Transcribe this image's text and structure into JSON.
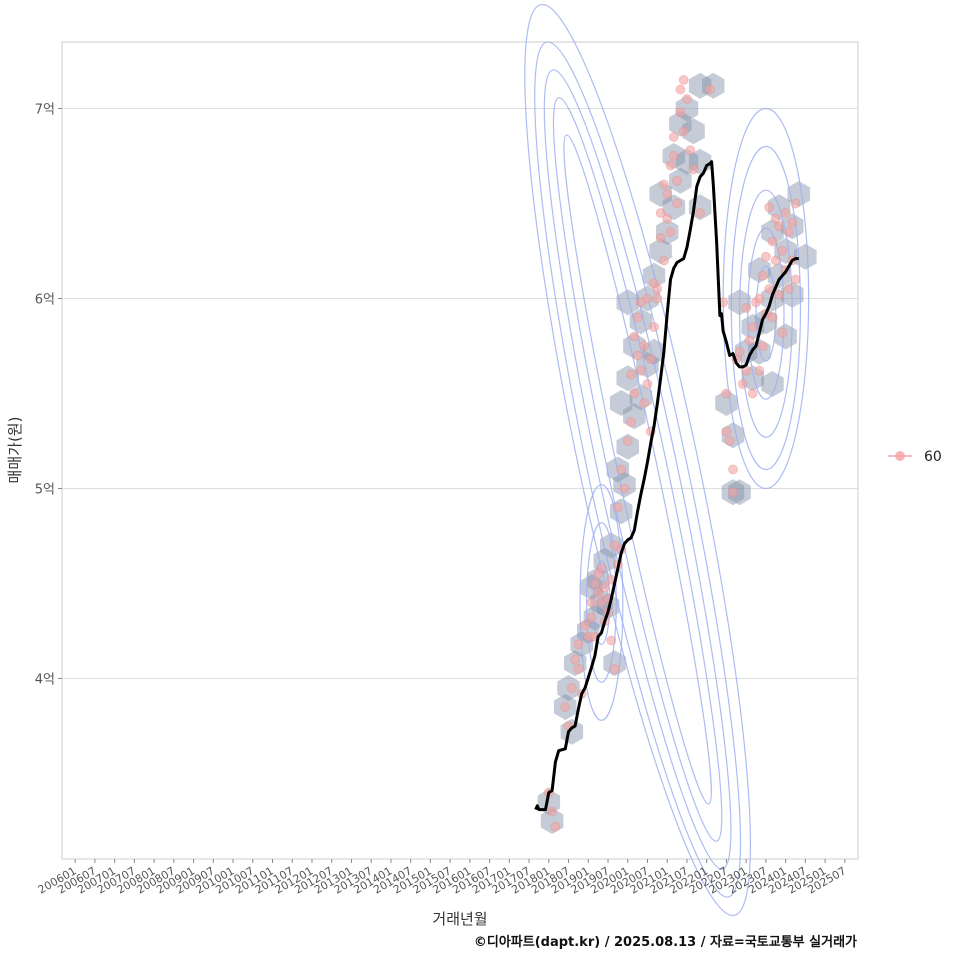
{
  "chart_data": {
    "type": "scatter",
    "title": "",
    "xlabel": "거래년월",
    "ylabel": "매매가(원)",
    "y_unit": "억",
    "ylim": [
      3.05,
      7.35
    ],
    "y_ticks": [
      4,
      5,
      6,
      7
    ],
    "y_tick_labels": [
      "4억",
      "5억",
      "6억",
      "7억"
    ],
    "x_ticks": [
      "200601",
      "200607",
      "200701",
      "200707",
      "200801",
      "200807",
      "200901",
      "200907",
      "201001",
      "201007",
      "201101",
      "201107",
      "201201",
      "201207",
      "201301",
      "201307",
      "201401",
      "201407",
      "201501",
      "201507",
      "201601",
      "201607",
      "201701",
      "201707",
      "201801",
      "201807",
      "201901",
      "201907",
      "202001",
      "202007",
      "202101",
      "202107",
      "202201",
      "202207",
      "202301",
      "202307",
      "202401",
      "202407",
      "202501",
      "202507"
    ],
    "xlim_months": [
      -4,
      238
    ],
    "grid": true,
    "legend": {
      "position": "right",
      "entries": [
        {
          "label": "60",
          "color": "#f4a3a3"
        }
      ]
    },
    "series": [
      {
        "name": "moving-average",
        "kind": "line",
        "color": "#000000",
        "points": [
          [
            140,
            3.31
          ],
          [
            140.5,
            3.33
          ],
          [
            141,
            3.31
          ],
          [
            143,
            3.31
          ],
          [
            144,
            3.4
          ],
          [
            145,
            3.41
          ],
          [
            146,
            3.56
          ],
          [
            147,
            3.62
          ],
          [
            149,
            3.63
          ],
          [
            150,
            3.72
          ],
          [
            151,
            3.74
          ],
          [
            152,
            3.75
          ],
          [
            153,
            3.84
          ],
          [
            154,
            3.92
          ],
          [
            155,
            3.95
          ],
          [
            157,
            4.06
          ],
          [
            158,
            4.12
          ],
          [
            159,
            4.22
          ],
          [
            160,
            4.24
          ],
          [
            161,
            4.3
          ],
          [
            162,
            4.35
          ],
          [
            163,
            4.42
          ],
          [
            164,
            4.5
          ],
          [
            165,
            4.58
          ],
          [
            166,
            4.66
          ],
          [
            167,
            4.71
          ],
          [
            168,
            4.73
          ],
          [
            169,
            4.74
          ],
          [
            170,
            4.78
          ],
          [
            171,
            4.88
          ],
          [
            172,
            4.97
          ],
          [
            173,
            5.05
          ],
          [
            174,
            5.14
          ],
          [
            175,
            5.24
          ],
          [
            176,
            5.33
          ],
          [
            177,
            5.45
          ],
          [
            178,
            5.58
          ],
          [
            179,
            5.72
          ],
          [
            180,
            5.92
          ],
          [
            181,
            6.1
          ],
          [
            182,
            6.16
          ],
          [
            183,
            6.19
          ],
          [
            184,
            6.2
          ],
          [
            185,
            6.21
          ],
          [
            186,
            6.27
          ],
          [
            187,
            6.36
          ],
          [
            188,
            6.46
          ],
          [
            189,
            6.59
          ],
          [
            190,
            6.64
          ],
          [
            191,
            6.66
          ],
          [
            192,
            6.7
          ],
          [
            193,
            6.71
          ],
          [
            193.5,
            6.72
          ],
          [
            194,
            6.6
          ],
          [
            195,
            6.3
          ],
          [
            196,
            5.91
          ],
          [
            196.5,
            5.92
          ],
          [
            197,
            5.83
          ],
          [
            198,
            5.77
          ],
          [
            199,
            5.7
          ],
          [
            200,
            5.71
          ],
          [
            201,
            5.66
          ],
          [
            202,
            5.64
          ],
          [
            203,
            5.64
          ],
          [
            204,
            5.65
          ],
          [
            205,
            5.7
          ],
          [
            206,
            5.73
          ],
          [
            207,
            5.75
          ],
          [
            208,
            5.82
          ],
          [
            209,
            5.89
          ],
          [
            210,
            5.92
          ],
          [
            211,
            5.96
          ],
          [
            212,
            6.02
          ],
          [
            213,
            6.06
          ],
          [
            214,
            6.1
          ],
          [
            215,
            6.12
          ],
          [
            216,
            6.14
          ],
          [
            217,
            6.17
          ],
          [
            218,
            6.2
          ],
          [
            219,
            6.21
          ],
          [
            220,
            6.21
          ]
        ]
      },
      {
        "name": "60",
        "kind": "points",
        "color": "#f4a3a3",
        "note": "reproduced transactions (approximate)",
        "points": [
          [
            144,
            3.4
          ],
          [
            145,
            3.3
          ],
          [
            146,
            3.22
          ],
          [
            149,
            3.85
          ],
          [
            150,
            3.75
          ],
          [
            151,
            3.95
          ],
          [
            152,
            4.1
          ],
          [
            153,
            4.05
          ],
          [
            153,
            4.18
          ],
          [
            154,
            3.92
          ],
          [
            155,
            4.28
          ],
          [
            156,
            4.22
          ],
          [
            157,
            4.4
          ],
          [
            157,
            4.32
          ],
          [
            158,
            4.5
          ],
          [
            158,
            4.22
          ],
          [
            159,
            4.45
          ],
          [
            159,
            4.55
          ],
          [
            160,
            4.4
          ],
          [
            160,
            4.58
          ],
          [
            161,
            4.3
          ],
          [
            161,
            4.48
          ],
          [
            162,
            4.42
          ],
          [
            162,
            4.35
          ],
          [
            163,
            4.2
          ],
          [
            163,
            4.52
          ],
          [
            164,
            4.7
          ],
          [
            164,
            4.05
          ],
          [
            165,
            4.6
          ],
          [
            165,
            4.9
          ],
          [
            166,
            4.68
          ],
          [
            166,
            5.1
          ],
          [
            167,
            5.0
          ],
          [
            168,
            5.25
          ],
          [
            169,
            5.35
          ],
          [
            169,
            5.6
          ],
          [
            170,
            5.5
          ],
          [
            170,
            5.8
          ],
          [
            171,
            5.9
          ],
          [
            171,
            5.7
          ],
          [
            172,
            5.98
          ],
          [
            172,
            5.62
          ],
          [
            173,
            5.75
          ],
          [
            173,
            5.45
          ],
          [
            174,
            5.55
          ],
          [
            174,
            6.0
          ],
          [
            175,
            5.3
          ],
          [
            175,
            5.68
          ],
          [
            176,
            5.85
          ],
          [
            176,
            6.08
          ],
          [
            177,
            6.05
          ],
          [
            177,
            6.0
          ],
          [
            178,
            6.32
          ],
          [
            178,
            6.45
          ],
          [
            179,
            6.2
          ],
          [
            179,
            6.6
          ],
          [
            180,
            6.42
          ],
          [
            180,
            6.55
          ],
          [
            181,
            6.7
          ],
          [
            181,
            6.35
          ],
          [
            182,
            6.75
          ],
          [
            182,
            6.85
          ],
          [
            183,
            6.62
          ],
          [
            183,
            6.5
          ],
          [
            184,
            6.98
          ],
          [
            184,
            7.1
          ],
          [
            185,
            7.15
          ],
          [
            185,
            6.88
          ],
          [
            186,
            7.05
          ],
          [
            187,
            6.78
          ],
          [
            188,
            6.68
          ],
          [
            190,
            6.45
          ],
          [
            193,
            7.1
          ],
          [
            197,
            5.98
          ],
          [
            198,
            5.5
          ],
          [
            198,
            5.3
          ],
          [
            199,
            5.25
          ],
          [
            200,
            5.1
          ],
          [
            200,
            4.98
          ],
          [
            201,
            5.68
          ],
          [
            202,
            5.72
          ],
          [
            203,
            5.55
          ],
          [
            204,
            5.95
          ],
          [
            204,
            5.62
          ],
          [
            205,
            5.78
          ],
          [
            206,
            5.85
          ],
          [
            206,
            5.5
          ],
          [
            207,
            5.98
          ],
          [
            208,
            5.62
          ],
          [
            208,
            6.0
          ],
          [
            209,
            5.75
          ],
          [
            209,
            6.12
          ],
          [
            210,
            5.92
          ],
          [
            210,
            6.22
          ],
          [
            211,
            6.05
          ],
          [
            211,
            6.48
          ],
          [
            212,
            6.3
          ],
          [
            212,
            5.9
          ],
          [
            213,
            6.2
          ],
          [
            213,
            6.42
          ],
          [
            214,
            6.38
          ],
          [
            214,
            6.02
          ],
          [
            215,
            6.25
          ],
          [
            215,
            5.82
          ],
          [
            216,
            6.45
          ],
          [
            216,
            6.15
          ],
          [
            217,
            6.35
          ],
          [
            217,
            6.05
          ],
          [
            218,
            6.4
          ],
          [
            218,
            6.2
          ],
          [
            219,
            6.5
          ],
          [
            219,
            6.1
          ]
        ]
      }
    ],
    "density_hexbins": [
      {
        "x": 145,
        "y": 3.25
      },
      {
        "x": 144,
        "y": 3.35
      },
      {
        "x": 149,
        "y": 3.85
      },
      {
        "x": 151,
        "y": 3.72
      },
      {
        "x": 150,
        "y": 3.95
      },
      {
        "x": 152,
        "y": 4.08
      },
      {
        "x": 154,
        "y": 4.18
      },
      {
        "x": 156,
        "y": 4.25
      },
      {
        "x": 158,
        "y": 4.32
      },
      {
        "x": 160,
        "y": 4.4
      },
      {
        "x": 162,
        "y": 4.38
      },
      {
        "x": 159,
        "y": 4.52
      },
      {
        "x": 157,
        "y": 4.48
      },
      {
        "x": 161,
        "y": 4.62
      },
      {
        "x": 163,
        "y": 4.7
      },
      {
        "x": 164,
        "y": 4.08
      },
      {
        "x": 166,
        "y": 4.88
      },
      {
        "x": 165,
        "y": 5.1
      },
      {
        "x": 167,
        "y": 5.02
      },
      {
        "x": 168,
        "y": 5.22
      },
      {
        "x": 170,
        "y": 5.38
      },
      {
        "x": 166,
        "y": 5.45
      },
      {
        "x": 172,
        "y": 5.48
      },
      {
        "x": 168,
        "y": 5.58
      },
      {
        "x": 174,
        "y": 5.65
      },
      {
        "x": 170,
        "y": 5.75
      },
      {
        "x": 176,
        "y": 5.72
      },
      {
        "x": 172,
        "y": 5.88
      },
      {
        "x": 168,
        "y": 5.98
      },
      {
        "x": 174,
        "y": 6.0
      },
      {
        "x": 176,
        "y": 6.12
      },
      {
        "x": 178,
        "y": 6.25
      },
      {
        "x": 180,
        "y": 6.35
      },
      {
        "x": 182,
        "y": 6.48
      },
      {
        "x": 178,
        "y": 6.55
      },
      {
        "x": 184,
        "y": 6.62
      },
      {
        "x": 186,
        "y": 6.72
      },
      {
        "x": 182,
        "y": 6.75
      },
      {
        "x": 188,
        "y": 6.88
      },
      {
        "x": 184,
        "y": 6.92
      },
      {
        "x": 186,
        "y": 7.0
      },
      {
        "x": 190,
        "y": 7.12
      },
      {
        "x": 194,
        "y": 7.12
      },
      {
        "x": 190,
        "y": 6.48
      },
      {
        "x": 190,
        "y": 6.72
      },
      {
        "x": 198,
        "y": 5.45
      },
      {
        "x": 200,
        "y": 5.28
      },
      {
        "x": 200,
        "y": 4.98
      },
      {
        "x": 202,
        "y": 4.98
      },
      {
        "x": 204,
        "y": 5.72
      },
      {
        "x": 206,
        "y": 5.58
      },
      {
        "x": 202,
        "y": 5.98
      },
      {
        "x": 206,
        "y": 5.85
      },
      {
        "x": 208,
        "y": 5.72
      },
      {
        "x": 210,
        "y": 5.88
      },
      {
        "x": 212,
        "y": 6.0
      },
      {
        "x": 208,
        "y": 6.15
      },
      {
        "x": 214,
        "y": 6.12
      },
      {
        "x": 216,
        "y": 6.25
      },
      {
        "x": 212,
        "y": 6.35
      },
      {
        "x": 218,
        "y": 6.38
      },
      {
        "x": 214,
        "y": 6.48
      },
      {
        "x": 220,
        "y": 6.55
      },
      {
        "x": 222,
        "y": 6.22
      },
      {
        "x": 216,
        "y": 5.8
      },
      {
        "x": 212,
        "y": 5.55
      },
      {
        "x": 218,
        "y": 6.02
      }
    ],
    "density_contours": [
      {
        "cx": 171,
        "cy": 5.1,
        "rx": 6,
        "ry": 1.8,
        "rot": -12
      },
      {
        "cx": 171,
        "cy": 5.1,
        "rx": 9,
        "ry": 2.0,
        "rot": -12
      },
      {
        "cx": 171,
        "cy": 5.1,
        "rx": 12,
        "ry": 2.15,
        "rot": -12
      },
      {
        "cx": 171,
        "cy": 5.1,
        "rx": 15,
        "ry": 2.3,
        "rot": -12
      },
      {
        "cx": 171,
        "cy": 5.15,
        "rx": 18,
        "ry": 2.45,
        "rot": -12
      },
      {
        "cx": 160,
        "cy": 4.4,
        "rx": 2.5,
        "ry": 0.22,
        "rot": 0
      },
      {
        "cx": 160,
        "cy": 4.4,
        "rx": 4.5,
        "ry": 0.42,
        "rot": 0
      },
      {
        "cx": 160,
        "cy": 4.4,
        "rx": 6.5,
        "ry": 0.62,
        "rot": 0
      },
      {
        "cx": 210,
        "cy": 5.92,
        "rx": 3,
        "ry": 0.25,
        "rot": 0
      },
      {
        "cx": 210,
        "cy": 5.92,
        "rx": 5.5,
        "ry": 0.45,
        "rot": 0
      },
      {
        "cx": 210,
        "cy": 5.92,
        "rx": 8,
        "ry": 0.65,
        "rot": 0
      },
      {
        "cx": 210,
        "cy": 5.95,
        "rx": 10.5,
        "ry": 0.85,
        "rot": 0
      },
      {
        "cx": 210,
        "cy": 6.0,
        "rx": 13,
        "ry": 1.0,
        "rot": 0
      }
    ]
  },
  "caption": "©디아파트(dapt.kr) / 2025.08.13 / 자료=국토교통부 실거래가",
  "colors": {
    "panel_border": "#cccccc",
    "grid": "#dddddd",
    "hex_fill": "#7f8fa6",
    "contour": "#9fb0f0",
    "line": "#000000",
    "points": "#f4a3a3"
  }
}
